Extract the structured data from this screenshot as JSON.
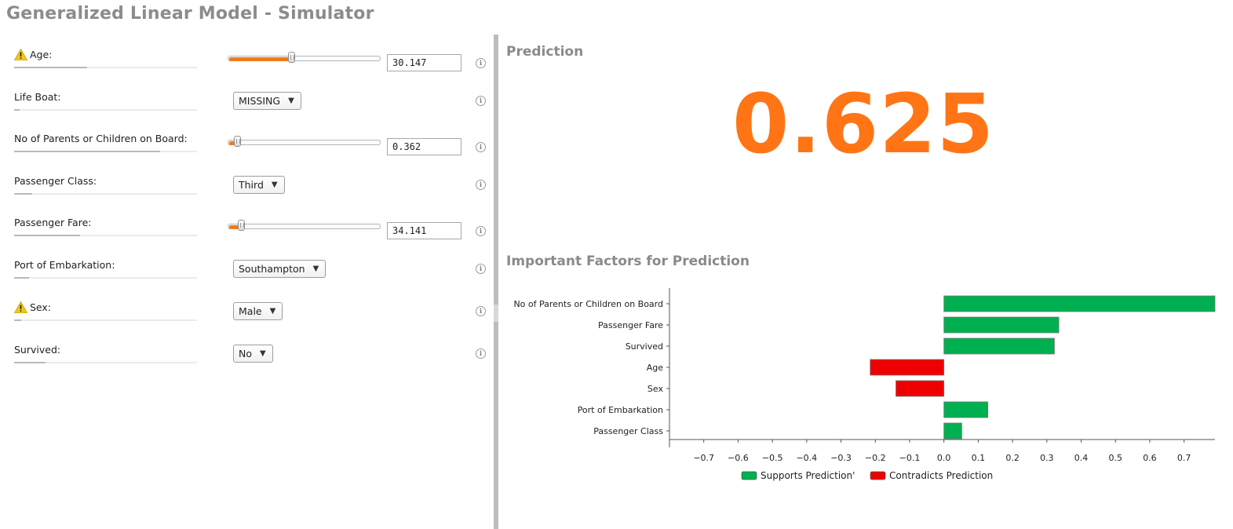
{
  "app": {
    "title": "Generalized Linear Model - Simulator"
  },
  "inputs": [
    {
      "key": "age",
      "label": "Age:",
      "warning": true,
      "importance": 0.4,
      "control": "slider",
      "value": "30.147",
      "slider_fraction": 0.41
    },
    {
      "key": "life-boat",
      "label": "Life Boat:",
      "warning": false,
      "importance": 0.03,
      "control": "select",
      "value": "MISSING"
    },
    {
      "key": "parents-children",
      "label": "No of Parents or Children on Board:",
      "warning": false,
      "importance": 0.8,
      "control": "slider",
      "value": "0.362",
      "slider_fraction": 0.05
    },
    {
      "key": "passenger-class",
      "label": "Passenger Class:",
      "warning": false,
      "importance": 0.1,
      "control": "select",
      "value": "Third"
    },
    {
      "key": "passenger-fare",
      "label": "Passenger Fare:",
      "warning": false,
      "importance": 0.36,
      "control": "slider",
      "value": "34.141",
      "slider_fraction": 0.08
    },
    {
      "key": "port-embarkation",
      "label": "Port of Embarkation:",
      "warning": false,
      "importance": 0.08,
      "control": "select",
      "value": "Southampton"
    },
    {
      "key": "sex",
      "label": "Sex:",
      "warning": true,
      "importance": 0.04,
      "control": "select",
      "value": "Male"
    },
    {
      "key": "survived",
      "label": "Survived:",
      "warning": false,
      "importance": 0.17,
      "control": "select",
      "value": "No"
    }
  ],
  "prediction": {
    "title": "Prediction",
    "value": "0.625"
  },
  "factors": {
    "title": "Important Factors for Prediction"
  },
  "colors": {
    "accent": "#f07a1a",
    "prediction": "#ff7515",
    "supports": "#00b050",
    "contradicts": "#ee0000"
  },
  "icons": {
    "warning": "warning-icon",
    "info": "info-icon"
  },
  "chart_data": {
    "type": "bar",
    "orientation": "horizontal",
    "categories": [
      "No of Parents or Children on Board",
      "Passenger Fare",
      "Survived",
      "Age",
      "Sex",
      "Port of Embarkation",
      "Passenger Class"
    ],
    "values": [
      0.79,
      0.335,
      0.322,
      -0.215,
      -0.14,
      0.128,
      0.052
    ],
    "xlim": [
      -0.8,
      0.79
    ],
    "xticks": [
      "-0.7",
      "-0.6",
      "-0.5",
      "-0.4",
      "-0.3",
      "-0.2",
      "-0.1",
      "0.0",
      "0.1",
      "0.2",
      "0.3",
      "0.4",
      "0.5",
      "0.6",
      "0.7"
    ],
    "legend": [
      "Supports Prediction'",
      "Contradicts Prediction"
    ],
    "legend_position": "bottom"
  }
}
